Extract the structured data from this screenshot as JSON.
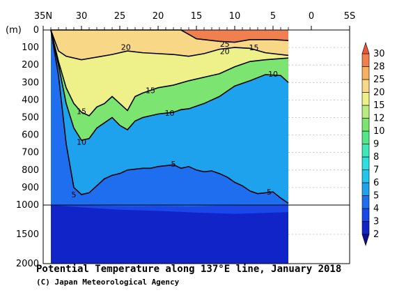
{
  "chart_data": {
    "type": "contour",
    "title": "Potential Temperature along 137°E line, January 2018",
    "credit": "(C) Japan Meteorological Agency",
    "y_unit_label": "(m)",
    "x_tick_labels": [
      "35N",
      "30",
      "25",
      "20",
      "15",
      "10",
      "5",
      "0",
      "5S"
    ],
    "x_ticks_lat": [
      35,
      30,
      25,
      20,
      15,
      10,
      5,
      0,
      -5
    ],
    "xlim": [
      35,
      -5
    ],
    "data_lat_range": [
      34,
      3
    ],
    "y_tick_labels_upper": [
      "0",
      "100",
      "200",
      "300",
      "400",
      "500",
      "600",
      "700",
      "800",
      "900",
      "1000"
    ],
    "y_tick_labels_lower": [
      "1500",
      "2000"
    ],
    "ylim": [
      0,
      2000
    ],
    "y_break_depth": 1000,
    "colorbar": {
      "levels": [
        "2",
        "3",
        "4",
        "5",
        "6",
        "7",
        "8",
        "9",
        "10",
        "12",
        "15",
        "20",
        "25",
        "28",
        "30"
      ],
      "colors": [
        "#0c0e8c",
        "#1024c8",
        "#1a48e8",
        "#1f6ef0",
        "#1ea2ee",
        "#22c6ec",
        "#2ce0e2",
        "#3ee8b8",
        "#52e88a",
        "#7ce470",
        "#b8ec80",
        "#eef08a",
        "#f8d886",
        "#f6b060",
        "#f08050",
        "#e85838"
      ]
    },
    "contour_labels": [
      {
        "text": "25",
        "lat": 11.3,
        "depth": 80
      },
      {
        "text": "20",
        "lat": 11.3,
        "depth": 122
      },
      {
        "text": "15",
        "lat": 7.5,
        "depth": 100
      },
      {
        "text": "20",
        "lat": 24.2,
        "depth": 97
      },
      {
        "text": "10",
        "lat": 5.0,
        "depth": 250
      },
      {
        "text": "15",
        "lat": 21.0,
        "depth": 345
      },
      {
        "text": "15",
        "lat": 30.0,
        "depth": 465
      },
      {
        "text": "10",
        "lat": 18.5,
        "depth": 475
      },
      {
        "text": "10",
        "lat": 30.0,
        "depth": 640
      },
      {
        "text": "5",
        "lat": 18.0,
        "depth": 765
      },
      {
        "text": "5",
        "lat": 31.0,
        "depth": 940
      },
      {
        "text": "5",
        "lat": 5.5,
        "depth": 925
      }
    ],
    "iso_lines": [
      {
        "temp": 25,
        "label": "25",
        "points": [
          [
            34,
            0
          ],
          [
            25,
            0
          ],
          [
            20,
            0
          ],
          [
            17,
            0
          ],
          [
            15,
            50
          ],
          [
            12,
            65
          ],
          [
            10,
            70
          ],
          [
            8,
            55
          ],
          [
            5,
            55
          ],
          [
            3,
            60
          ]
        ]
      },
      {
        "temp": 20,
        "label": "20",
        "points": [
          [
            34,
            0
          ],
          [
            33,
            120
          ],
          [
            32,
            150
          ],
          [
            30,
            170
          ],
          [
            28,
            155
          ],
          [
            26,
            140
          ],
          [
            24,
            120
          ],
          [
            22,
            130
          ],
          [
            20,
            135
          ],
          [
            18,
            140
          ],
          [
            16,
            150
          ],
          [
            14,
            135
          ],
          [
            12,
            110
          ],
          [
            10,
            100
          ],
          [
            8,
            105
          ],
          [
            6,
            130
          ],
          [
            3,
            145
          ]
        ]
      },
      {
        "temp": 15,
        "label": "15",
        "points": [
          [
            34,
            0
          ],
          [
            33,
            180
          ],
          [
            32,
            330
          ],
          [
            31,
            420
          ],
          [
            30,
            470
          ],
          [
            29,
            490
          ],
          [
            28,
            440
          ],
          [
            27,
            420
          ],
          [
            26,
            380
          ],
          [
            25,
            420
          ],
          [
            24,
            460
          ],
          [
            23,
            380
          ],
          [
            22,
            360
          ],
          [
            21,
            345
          ],
          [
            20,
            330
          ],
          [
            18,
            315
          ],
          [
            16,
            290
          ],
          [
            14,
            270
          ],
          [
            12,
            250
          ],
          [
            10,
            210
          ],
          [
            8,
            180
          ],
          [
            6,
            170
          ],
          [
            3,
            160
          ]
        ]
      },
      {
        "temp": 10,
        "label": "10",
        "points": [
          [
            34,
            0
          ],
          [
            33,
            200
          ],
          [
            32,
            420
          ],
          [
            31,
            560
          ],
          [
            30,
            630
          ],
          [
            29,
            620
          ],
          [
            28,
            560
          ],
          [
            27,
            530
          ],
          [
            26,
            500
          ],
          [
            25,
            545
          ],
          [
            24,
            570
          ],
          [
            23,
            520
          ],
          [
            22,
            500
          ],
          [
            21,
            490
          ],
          [
            20,
            480
          ],
          [
            18,
            470
          ],
          [
            17,
            455
          ],
          [
            16,
            450
          ],
          [
            14,
            420
          ],
          [
            12,
            380
          ],
          [
            10,
            320
          ],
          [
            8,
            290
          ],
          [
            6,
            255
          ],
          [
            4,
            260
          ],
          [
            3,
            300
          ]
        ]
      },
      {
        "temp": 5,
        "label": "5",
        "points": [
          [
            34,
            0
          ],
          [
            33,
            260
          ],
          [
            32,
            650
          ],
          [
            31,
            900
          ],
          [
            30,
            940
          ],
          [
            29,
            930
          ],
          [
            28,
            890
          ],
          [
            27,
            850
          ],
          [
            26,
            830
          ],
          [
            25,
            820
          ],
          [
            24,
            800
          ],
          [
            23,
            795
          ],
          [
            22,
            790
          ],
          [
            21,
            790
          ],
          [
            20,
            780
          ],
          [
            18,
            770
          ],
          [
            17,
            790
          ],
          [
            16,
            780
          ],
          [
            15,
            800
          ],
          [
            14,
            810
          ],
          [
            13,
            805
          ],
          [
            12,
            820
          ],
          [
            11,
            840
          ],
          [
            10,
            870
          ],
          [
            9,
            890
          ],
          [
            8,
            920
          ],
          [
            7,
            935
          ],
          [
            6,
            930
          ],
          [
            5,
            925
          ],
          [
            4,
            960
          ],
          [
            3,
            990
          ]
        ]
      }
    ],
    "grid": "dotted",
    "legend_position": "right"
  }
}
